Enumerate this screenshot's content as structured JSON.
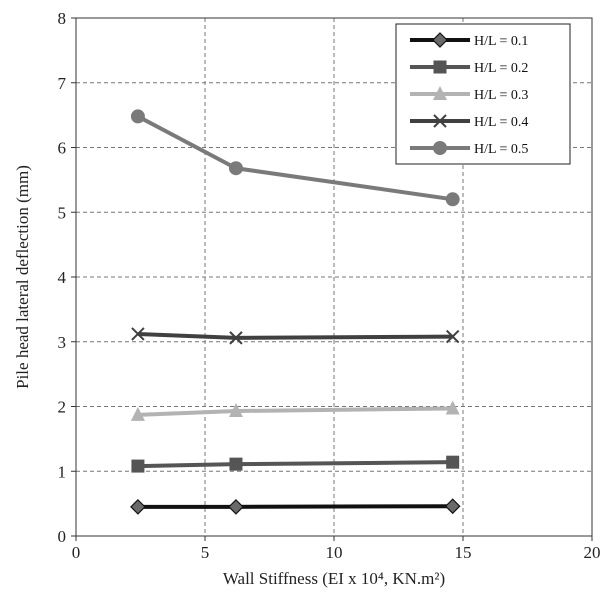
{
  "chart_data": {
    "type": "line",
    "xlabel": "Wall Stiffness (EI x 10⁴, KN.m²)",
    "ylabel": "Pile head lateral deflection (mm)",
    "xlim": [
      0,
      20
    ],
    "ylim": [
      0,
      8
    ],
    "x_ticks": [
      "0",
      "5",
      "10",
      "15",
      "20"
    ],
    "y_ticks": [
      "0",
      "1",
      "2",
      "3",
      "4",
      "5",
      "6",
      "7",
      "8"
    ],
    "grid": true,
    "legend_position": "top-right",
    "x": [
      2.4,
      6.2,
      14.6
    ],
    "series": [
      {
        "name": "H/L = 0.1",
        "values": [
          0.45,
          0.45,
          0.46
        ],
        "color": "#111111",
        "marker": "diamond"
      },
      {
        "name": "H/L = 0.2",
        "values": [
          1.08,
          1.11,
          1.14
        ],
        "color": "#555555",
        "marker": "square"
      },
      {
        "name": "H/L = 0.3",
        "values": [
          1.87,
          1.93,
          1.97
        ],
        "color": "#b3b3b3",
        "marker": "triangle"
      },
      {
        "name": "H/L = 0.4",
        "values": [
          3.12,
          3.06,
          3.08
        ],
        "color": "#404040",
        "marker": "x"
      },
      {
        "name": "H/L = 0.5",
        "values": [
          6.48,
          5.68,
          5.2
        ],
        "color": "#7a7a7a",
        "marker": "circle"
      }
    ]
  }
}
